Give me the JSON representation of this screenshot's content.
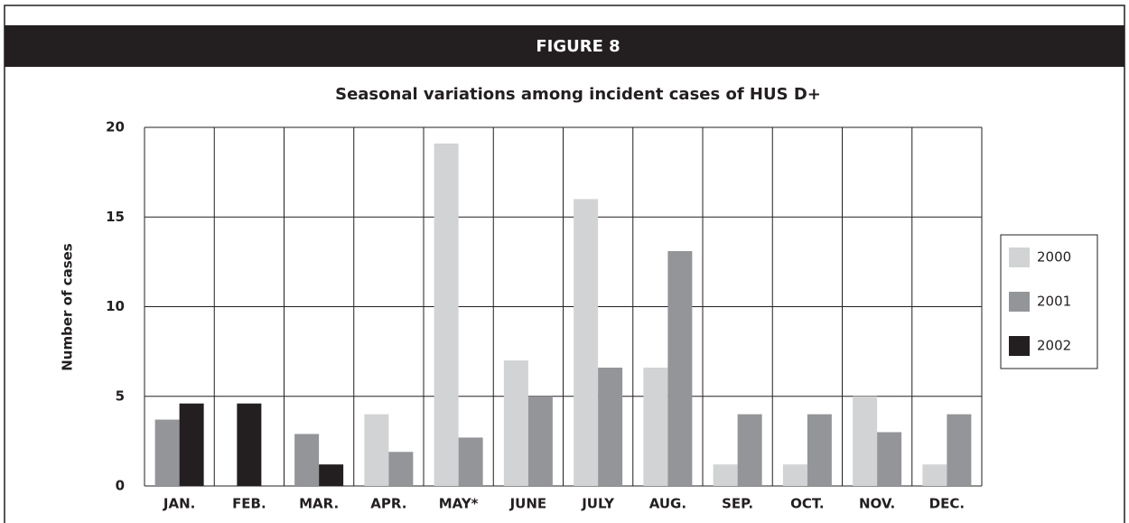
{
  "chart_data": {
    "type": "bar",
    "figure_label": "FIGURE 8",
    "title": "Seasonal variations among incident cases of HUS D+",
    "y_label": "Number of cases",
    "categories": [
      "JAN.",
      "FEB.",
      "MAR.",
      "APR.",
      "MAY*",
      "JUNE",
      "JULY",
      "AUG.",
      "SEP.",
      "OCT.",
      "NOV.",
      "DEC."
    ],
    "series": [
      {
        "name": "2000",
        "color": "#d1d3d4",
        "values": [
          null,
          null,
          null,
          4.0,
          19.1,
          7.0,
          16.0,
          6.6,
          1.2,
          1.2,
          5.0,
          1.2
        ]
      },
      {
        "name": "2001",
        "color": "#939598",
        "values": [
          3.7,
          null,
          2.9,
          1.9,
          2.7,
          5.0,
          6.6,
          13.1,
          4.0,
          4.0,
          3.0,
          4.0
        ]
      },
      {
        "name": "2002",
        "color": "#231f20",
        "values": [
          4.6,
          4.6,
          1.2,
          null,
          null,
          null,
          null,
          null,
          null,
          null,
          null,
          null
        ]
      }
    ],
    "ylim": [
      0,
      20
    ],
    "yticks": [
      0,
      5,
      10,
      15,
      20
    ],
    "grid": true
  }
}
